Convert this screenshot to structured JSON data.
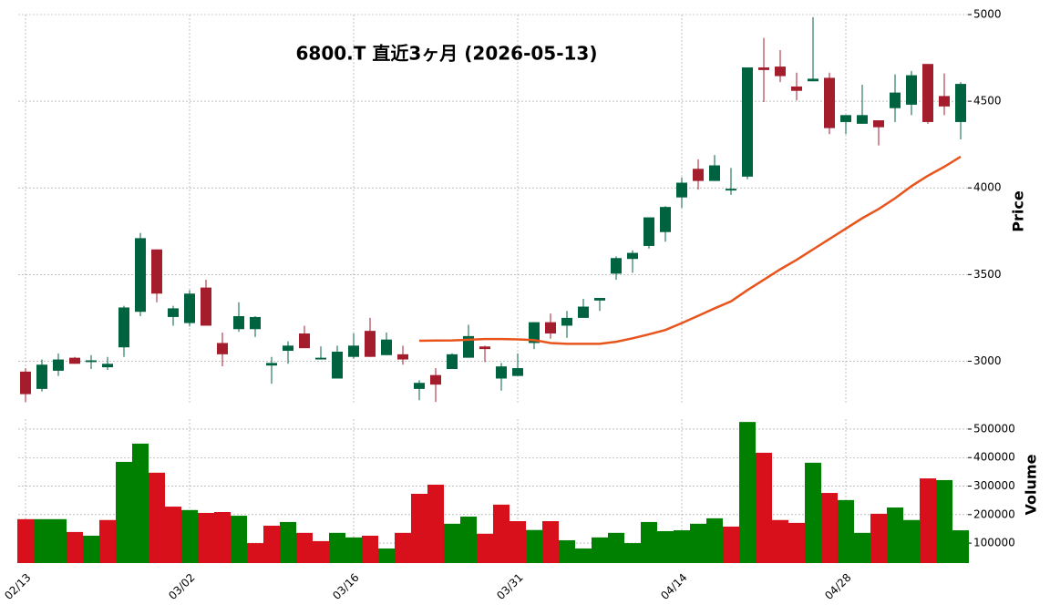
{
  "chart_data": {
    "type": "candlestick",
    "title": "6800.T  直近3ヶ月  (2026-05-13)",
    "ylabel": "Price",
    "categories": [
      "02/13",
      null,
      null,
      null,
      null,
      null,
      null,
      null,
      null,
      null,
      "03/02",
      null,
      null,
      null,
      null,
      null,
      null,
      null,
      null,
      null,
      "03/16",
      null,
      null,
      null,
      null,
      null,
      null,
      null,
      null,
      null,
      "03/31",
      null,
      null,
      null,
      null,
      null,
      null,
      null,
      null,
      null,
      "04/14",
      null,
      null,
      null,
      null,
      null,
      null,
      null,
      null,
      null,
      "04/28",
      null,
      null,
      null,
      null,
      null,
      null,
      null
    ],
    "open": [
      2940,
      2840,
      2945,
      3020,
      2995,
      2965,
      3080,
      3285,
      3645,
      3255,
      3220,
      3425,
      3105,
      3185,
      3185,
      2975,
      3060,
      3160,
      3010,
      2900,
      3025,
      3175,
      3035,
      3040,
      2840,
      2920,
      2955,
      3020,
      3085,
      2900,
      2915,
      3105,
      3225,
      3205,
      3250,
      3350,
      3505,
      3590,
      3665,
      3745,
      3945,
      4110,
      4040,
      3985,
      4065,
      4695,
      4700,
      4585,
      4615,
      4635,
      4380,
      4370,
      4390,
      4460,
      4480,
      4715,
      4530,
      4380
    ],
    "high": [
      2960,
      3010,
      3045,
      3025,
      3035,
      3025,
      3320,
      3740,
      3645,
      3320,
      3410,
      3470,
      3165,
      3340,
      3260,
      3025,
      3115,
      3205,
      3085,
      3090,
      3160,
      3250,
      3165,
      3090,
      2890,
      2960,
      3045,
      3210,
      3090,
      2990,
      3045,
      3225,
      3275,
      3290,
      3360,
      3365,
      3605,
      3640,
      3830,
      3895,
      4060,
      4165,
      4190,
      4115,
      4695,
      4865,
      4795,
      4665,
      4985,
      4665,
      4420,
      4595,
      4390,
      4655,
      4675,
      4715,
      4660,
      4610
    ],
    "low": [
      2765,
      2825,
      2915,
      2985,
      2955,
      2950,
      3025,
      3260,
      3340,
      3205,
      3200,
      3205,
      2970,
      3170,
      3140,
      2870,
      2985,
      3075,
      3010,
      2900,
      3015,
      3025,
      3035,
      2980,
      2775,
      2765,
      2955,
      3020,
      2995,
      2830,
      2915,
      3070,
      3130,
      3135,
      3250,
      3290,
      3470,
      3510,
      3650,
      3690,
      3885,
      3990,
      4040,
      3960,
      4050,
      4495,
      4610,
      4505,
      4615,
      4310,
      4310,
      4370,
      4245,
      4380,
      4420,
      4370,
      4420,
      4280
    ],
    "close": [
      2810,
      2980,
      3010,
      2985,
      3005,
      2985,
      3310,
      3710,
      3390,
      3305,
      3390,
      3205,
      3040,
      3260,
      3255,
      2990,
      3090,
      3075,
      3020,
      3055,
      3090,
      3025,
      3125,
      3010,
      2875,
      2865,
      3040,
      3145,
      3070,
      2970,
      2960,
      3225,
      3160,
      3250,
      3315,
      3365,
      3595,
      3625,
      3830,
      3890,
      4030,
      4040,
      4130,
      3995,
      4695,
      4680,
      4645,
      4560,
      4630,
      4345,
      4420,
      4420,
      4350,
      4550,
      4650,
      4380,
      4470,
      4600
    ],
    "up_color": "#006340",
    "down_color": "#a31d2c",
    "ma": {
      "color": "#e8541c",
      "values": [
        null,
        null,
        null,
        null,
        null,
        null,
        null,
        null,
        null,
        null,
        null,
        null,
        null,
        null,
        null,
        null,
        null,
        null,
        null,
        null,
        null,
        null,
        null,
        null,
        3118,
        3119,
        3120,
        3124,
        3128,
        3128,
        3126,
        3122,
        3105,
        3100,
        3100,
        3100,
        3112,
        3132,
        3155,
        3180,
        3220,
        3262,
        3305,
        3345,
        3410,
        3470,
        3530,
        3585,
        3645,
        3705,
        3765,
        3825,
        3878,
        3940,
        4010,
        4070,
        4122,
        4180
      ]
    },
    "ylim": [
      2750,
      5000
    ],
    "yticks": [
      3000,
      3500,
      4000,
      4500,
      5000
    ],
    "grid": true,
    "volume": {
      "ylabel": "Volume",
      "up_color": "#008000",
      "down_color": "#d7101c",
      "values": [
        184000,
        184000,
        184000,
        139000,
        126000,
        181000,
        385000,
        449000,
        347000,
        228000,
        216000,
        206000,
        209000,
        196000,
        100000,
        161000,
        174000,
        136000,
        107000,
        136000,
        120000,
        126000,
        81000,
        136000,
        273000,
        305000,
        168000,
        193000,
        133000,
        235000,
        177000,
        146000,
        177000,
        110000,
        81000,
        120000,
        136000,
        100000,
        174000,
        142000,
        145000,
        168000,
        187000,
        158000,
        525000,
        417000,
        181000,
        171000,
        382000,
        276000,
        251000,
        136000,
        203000,
        225000,
        181000,
        327000,
        321000,
        145000
      ],
      "ylim": [
        30000,
        535000
      ],
      "yticks": [
        100000,
        200000,
        300000,
        400000,
        500000
      ]
    }
  }
}
